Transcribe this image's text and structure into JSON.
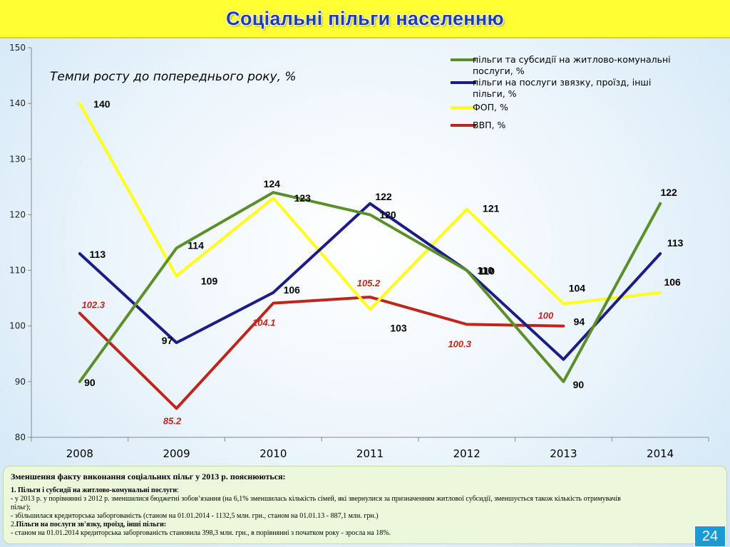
{
  "slide": {
    "title": "Соціальні пільги населенню",
    "page_number": "24"
  },
  "colors": {
    "title_bar": "#ffff33",
    "title_text": "#1f3fa8",
    "note_bg": "#edf7dc",
    "page_badge": "#1a9ad6"
  },
  "chart_data": {
    "type": "line",
    "subtitle": "Темпи росту до попереднього року, %",
    "categories": [
      "2008",
      "2009",
      "2010",
      "2011",
      "2012",
      "2013",
      "2014"
    ],
    "ylim": [
      80,
      150
    ],
    "yticks": [
      "80",
      "90",
      "100",
      "110",
      "120",
      "130",
      "140",
      "150"
    ],
    "grid": false,
    "legend_position": "top-right",
    "series": [
      {
        "name": "пільги та субсидії на житлово-комунальні послуги, %",
        "legend_lines": [
          "пільги та субсидії на житлово-комунальні",
          "послуги, %"
        ],
        "color": "#5b8f29",
        "values": [
          90,
          114,
          124,
          120,
          110,
          90,
          122
        ],
        "labels": [
          "90",
          "114",
          "124",
          "120",
          "110",
          "90",
          "122"
        ]
      },
      {
        "name": "пільги на послуги звязку, проїзд, інші пільги, %",
        "legend_lines": [
          "пільги на послуги звязку, проїзд, інші",
          "пільги, %"
        ],
        "color": "#1c1c88",
        "values": [
          113,
          97,
          106,
          122,
          110,
          94,
          113
        ],
        "labels": [
          "113",
          "97",
          "106",
          "122",
          "110",
          "94",
          "113"
        ]
      },
      {
        "name": "ФОП, %",
        "legend_lines": [
          "ФОП, %"
        ],
        "color": "#ffff1a",
        "values": [
          140,
          109,
          123,
          103,
          121,
          104,
          106
        ],
        "labels": [
          "140",
          "109",
          "123",
          "103",
          "121",
          "104",
          "106"
        ]
      },
      {
        "name": "ВВП, %",
        "legend_lines": [
          "ВВП, %"
        ],
        "color": "#c0251b",
        "values": [
          102.3,
          85.2,
          104.1,
          105.2,
          100.3,
          100,
          null
        ],
        "labels": [
          "102.3",
          "85.2",
          "104.1",
          "105.2",
          "100.3",
          "100",
          ""
        ]
      }
    ]
  },
  "note": {
    "heading": "Зменшення факту виконання соціальних пільг у 2013 р. пояснюються:",
    "item1_title": "1. Пільги і субсидії на житлово-комунальні послуги",
    "item1_title_suffix": ":",
    "item1_line1": "-  у 2013 р. у порівнянні з 2012 р. зменшилися бюджетні зобов’язання  (на 6,1% зменшилась кількість сімей, які звернулися за призначенням житлової субсидії, зменшується також кількість отримувачів",
    "item1_line2": "пільг);",
    "item1_line3": "-      збільшилася кредиторська заборгованість (станом  на 01.01.2014  -  1132,5 млн. грн., станом  на 01.01.13 - 887,1 млн. грн.)",
    "item2_prefix": "2.",
    "item2_title": "Пільги на послуги зв'язку, проїзд, інші пільги:",
    "item2_line1": "  - станом на 01.01.2014 кредиторська заборгованість становила 398,3 млн. грн., в порівнянні з початком року -  зросла на 18%."
  }
}
